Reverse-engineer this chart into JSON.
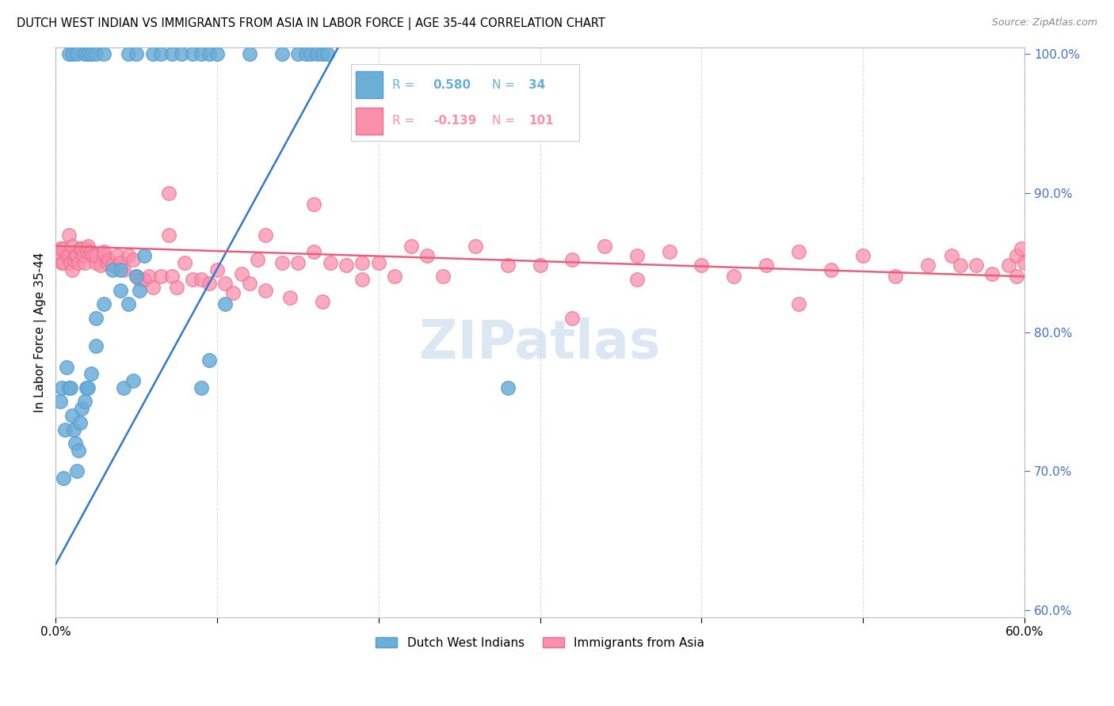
{
  "title": "DUTCH WEST INDIAN VS IMMIGRANTS FROM ASIA IN LABOR FORCE | AGE 35-44 CORRELATION CHART",
  "source": "Source: ZipAtlas.com",
  "ylabel": "In Labor Force | Age 35-44",
  "xlim": [
    0.0,
    0.6
  ],
  "ylim": [
    0.595,
    1.005
  ],
  "xticks": [
    0.0,
    0.1,
    0.2,
    0.3,
    0.4,
    0.5,
    0.6
  ],
  "xticklabels": [
    "0.0%",
    "",
    "",
    "",
    "",
    "",
    "60.0%"
  ],
  "yticks": [
    0.6,
    0.7,
    0.8,
    0.9,
    1.0
  ],
  "yticklabels": [
    "60.0%",
    "70.0%",
    "80.0%",
    "90.0%",
    "100.0%"
  ],
  "blue_R": 0.58,
  "blue_N": 34,
  "pink_R": -0.139,
  "pink_N": 101,
  "blue_color": "#6BAED6",
  "pink_color": "#FC8FAB",
  "blue_edge_color": "#5B9BD5",
  "pink_edge_color": "#E87090",
  "blue_line_color": "#3478C8",
  "pink_line_color": "#E8607A",
  "grid_color": "#DDDDDD",
  "background_color": "#FFFFFF",
  "watermark": "ZIPatlas",
  "blue_scatter_x": [
    0.003,
    0.004,
    0.005,
    0.006,
    0.007,
    0.008,
    0.009,
    0.01,
    0.011,
    0.012,
    0.013,
    0.014,
    0.015,
    0.016,
    0.018,
    0.019,
    0.02,
    0.022,
    0.025,
    0.03,
    0.035,
    0.04,
    0.042,
    0.045,
    0.05,
    0.055,
    0.09,
    0.095,
    0.105,
    0.28,
    0.04,
    0.025,
    0.048,
    0.052
  ],
  "blue_scatter_y": [
    0.75,
    0.76,
    0.695,
    0.73,
    0.775,
    0.76,
    0.76,
    0.74,
    0.73,
    0.72,
    0.7,
    0.715,
    0.735,
    0.745,
    0.75,
    0.76,
    0.76,
    0.77,
    0.79,
    0.82,
    0.845,
    0.845,
    0.76,
    0.82,
    0.84,
    0.855,
    0.76,
    0.78,
    0.82,
    0.76,
    0.83,
    0.81,
    0.765,
    0.83
  ],
  "blue_top_x": [
    0.008,
    0.01,
    0.013,
    0.018,
    0.02,
    0.022,
    0.025,
    0.03,
    0.045,
    0.05,
    0.06,
    0.065,
    0.072,
    0.078,
    0.085,
    0.09,
    0.095,
    0.1,
    0.12,
    0.14,
    0.15,
    0.155,
    0.158,
    0.162,
    0.165,
    0.168
  ],
  "blue_top_y": [
    1.0,
    1.0,
    1.0,
    1.0,
    1.0,
    1.0,
    1.0,
    1.0,
    1.0,
    1.0,
    1.0,
    1.0,
    1.0,
    1.0,
    1.0,
    1.0,
    1.0,
    1.0,
    1.0,
    1.0,
    1.0,
    1.0,
    1.0,
    1.0,
    1.0,
    1.0
  ],
  "pink_scatter_x": [
    0.002,
    0.003,
    0.004,
    0.005,
    0.005,
    0.007,
    0.008,
    0.008,
    0.009,
    0.01,
    0.01,
    0.011,
    0.012,
    0.013,
    0.014,
    0.015,
    0.016,
    0.017,
    0.018,
    0.019,
    0.02,
    0.02,
    0.022,
    0.023,
    0.025,
    0.025,
    0.028,
    0.03,
    0.03,
    0.032,
    0.033,
    0.035,
    0.038,
    0.04,
    0.042,
    0.045,
    0.048,
    0.05,
    0.052,
    0.055,
    0.058,
    0.06,
    0.065,
    0.07,
    0.072,
    0.075,
    0.08,
    0.085,
    0.09,
    0.095,
    0.1,
    0.105,
    0.11,
    0.115,
    0.12,
    0.125,
    0.13,
    0.14,
    0.145,
    0.15,
    0.16,
    0.165,
    0.17,
    0.18,
    0.19,
    0.2,
    0.21,
    0.22,
    0.23,
    0.24,
    0.26,
    0.28,
    0.3,
    0.32,
    0.34,
    0.36,
    0.38,
    0.4,
    0.42,
    0.44,
    0.46,
    0.48,
    0.5,
    0.52,
    0.54,
    0.555,
    0.56,
    0.57,
    0.58,
    0.59,
    0.595,
    0.598,
    0.6,
    0.07,
    0.13,
    0.16,
    0.19,
    0.32,
    0.36,
    0.46,
    0.595
  ],
  "pink_scatter_y": [
    0.858,
    0.86,
    0.85,
    0.85,
    0.86,
    0.855,
    0.855,
    0.87,
    0.85,
    0.845,
    0.862,
    0.852,
    0.855,
    0.855,
    0.85,
    0.86,
    0.86,
    0.855,
    0.85,
    0.86,
    0.858,
    0.862,
    0.858,
    0.855,
    0.85,
    0.855,
    0.848,
    0.855,
    0.858,
    0.85,
    0.852,
    0.848,
    0.855,
    0.85,
    0.845,
    0.855,
    0.852,
    0.84,
    0.838,
    0.838,
    0.84,
    0.832,
    0.84,
    0.9,
    0.84,
    0.832,
    0.85,
    0.838,
    0.838,
    0.835,
    0.845,
    0.835,
    0.828,
    0.842,
    0.835,
    0.852,
    0.83,
    0.85,
    0.825,
    0.85,
    0.858,
    0.822,
    0.85,
    0.848,
    0.85,
    0.85,
    0.84,
    0.862,
    0.855,
    0.84,
    0.862,
    0.848,
    0.848,
    0.852,
    0.862,
    0.855,
    0.858,
    0.848,
    0.84,
    0.848,
    0.858,
    0.845,
    0.855,
    0.84,
    0.848,
    0.855,
    0.848,
    0.848,
    0.842,
    0.848,
    0.855,
    0.86,
    0.85,
    0.87,
    0.87,
    0.892,
    0.838,
    0.81,
    0.838,
    0.82,
    0.84
  ],
  "blue_trendline_x": [
    0.0,
    0.175
  ],
  "blue_trendline_y": [
    0.633,
    1.005
  ],
  "pink_trendline_x": [
    0.0,
    0.6
  ],
  "pink_trendline_y": [
    0.862,
    0.84
  ]
}
